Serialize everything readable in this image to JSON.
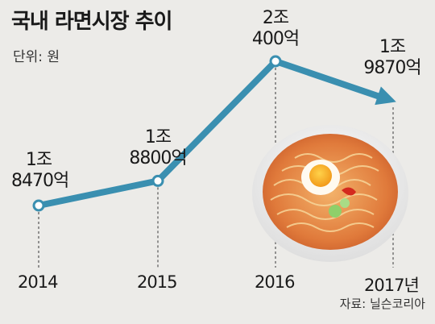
{
  "title": "국내 라면시장 추이",
  "unit_label": "단위: 원",
  "source": "자료: 닐슨코리아",
  "colors": {
    "line": "#3a8fb0",
    "background": "#ecebe8",
    "marker_fill": "#ffffff",
    "guide": "#555555"
  },
  "chart_data": {
    "type": "line",
    "title": "국내 라면시장 추이",
    "unit": "원",
    "x": [
      "2014",
      "2015",
      "2016",
      "2017년"
    ],
    "values": [
      1847000000000,
      1880000000000,
      2040000000000,
      1987000000000
    ],
    "data_labels": [
      [
        "1조",
        "8470억"
      ],
      [
        "1조",
        "8800억"
      ],
      [
        "2조",
        "400억"
      ],
      [
        "1조",
        "9870억"
      ]
    ],
    "ylim": [
      1800000000000,
      2050000000000
    ],
    "last_point_arrow": true,
    "grid": false,
    "legend": "none"
  },
  "decor": {
    "image_icon": "ramen-bowl-icon"
  }
}
